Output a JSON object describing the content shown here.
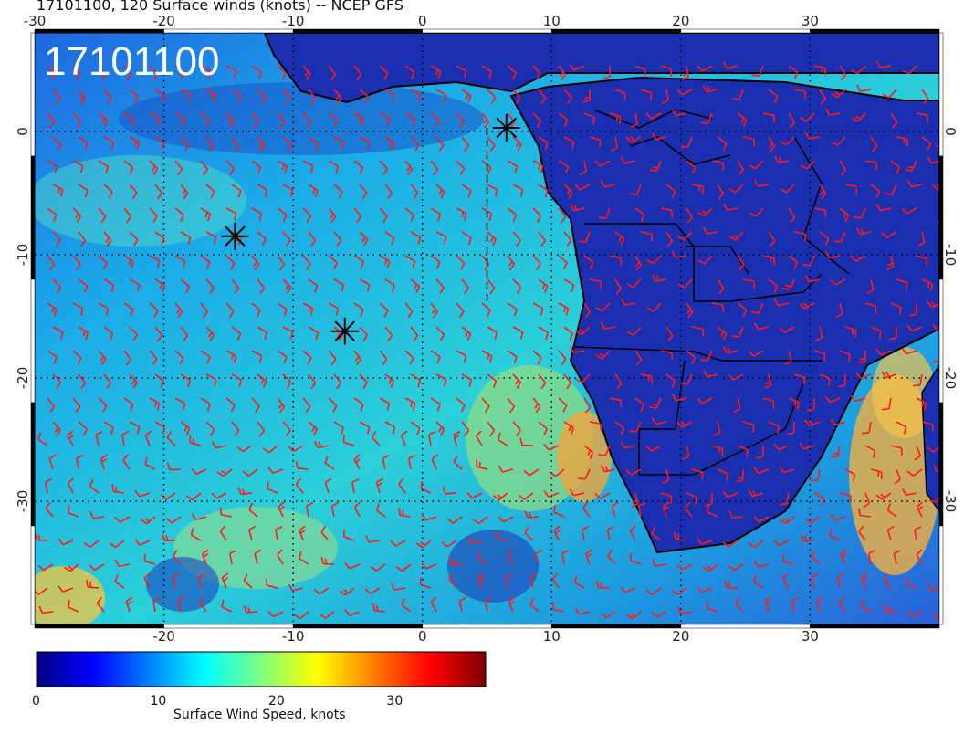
{
  "title": "17101100, 120 Surface winds (knots) -- NCEP GFS",
  "stamp": "17101100",
  "map": {
    "lon_range": [
      -30,
      40
    ],
    "lat_range": [
      -40,
      8
    ],
    "x_ticks": [
      {
        "value": -30,
        "label": "-30"
      },
      {
        "value": -20,
        "label": "-20"
      },
      {
        "value": -10,
        "label": "-10"
      },
      {
        "value": 0,
        "label": "0"
      },
      {
        "value": 10,
        "label": "10"
      },
      {
        "value": 20,
        "label": "20"
      },
      {
        "value": 30,
        "label": "30"
      }
    ],
    "y_ticks": [
      {
        "value": 0,
        "label": "0"
      },
      {
        "value": -10,
        "label": "-10"
      },
      {
        "value": -20,
        "label": "-20"
      },
      {
        "value": -30,
        "label": "-30"
      }
    ],
    "markers": [
      {
        "name": "marker-a",
        "lon": 6.5,
        "lat": 0.3
      },
      {
        "name": "marker-b",
        "lon": -14.5,
        "lat": -8.5
      },
      {
        "name": "marker-c",
        "lon": -6.0,
        "lat": -16.2
      }
    ],
    "track": [
      [
        5.0,
        0.3
      ],
      [
        5.0,
        -14.0
      ]
    ],
    "barb_color": "#ff1a1a",
    "coast_color": "#000000"
  },
  "colorbar": {
    "label": "Surface Wind Speed, knots",
    "min": 0,
    "max": 38,
    "ticks": [
      {
        "value": 0,
        "label": "0"
      },
      {
        "value": 10,
        "label": "10"
      },
      {
        "value": 20,
        "label": "20"
      },
      {
        "value": 30,
        "label": "30"
      }
    ],
    "colormap": [
      "#00007f",
      "#0000ff",
      "#007fff",
      "#00ffff",
      "#7fff7f",
      "#ffff00",
      "#ff7f00",
      "#ff0000",
      "#7f0000"
    ]
  }
}
